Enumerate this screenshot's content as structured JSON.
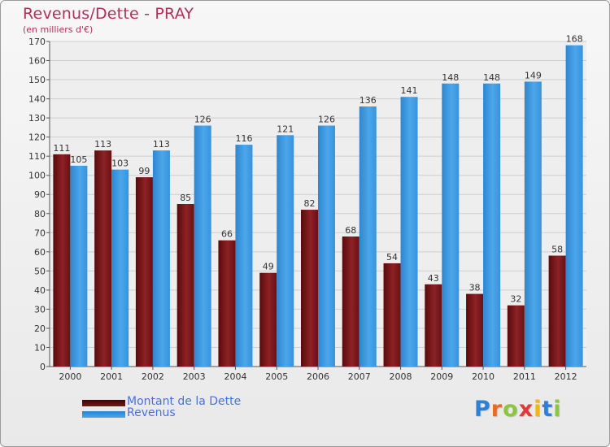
{
  "header": {
    "title": "Revenus/Dette - PRAY",
    "subtitle": "(en milliers d'€)"
  },
  "legend": {
    "items": [
      {
        "label": "Montant de la Dette",
        "color": "#6e0e10"
      },
      {
        "label": "Revenus",
        "color": "#3d97dd"
      }
    ]
  },
  "logo": {
    "text": "Proxiti"
  },
  "chart_data": {
    "type": "bar",
    "categories": [
      "2000",
      "2001",
      "2002",
      "2003",
      "2004",
      "2005",
      "2006",
      "2007",
      "2008",
      "2009",
      "2010",
      "2011",
      "2012"
    ],
    "series": [
      {
        "name": "Montant de la Dette",
        "color": "#7a1518",
        "values": [
          111,
          113,
          99,
          85,
          66,
          49,
          82,
          68,
          54,
          43,
          38,
          32,
          58
        ]
      },
      {
        "name": "Revenus",
        "color": "#3d97dd",
        "values": [
          105,
          103,
          113,
          126,
          116,
          121,
          126,
          136,
          141,
          148,
          148,
          149,
          168
        ]
      }
    ],
    "ylim": [
      0,
      170
    ],
    "yticks": [
      0,
      10,
      20,
      30,
      40,
      50,
      60,
      70,
      80,
      90,
      100,
      110,
      120,
      130,
      140,
      150,
      160,
      170
    ],
    "grid": true,
    "legend_position": "bottom-left"
  }
}
